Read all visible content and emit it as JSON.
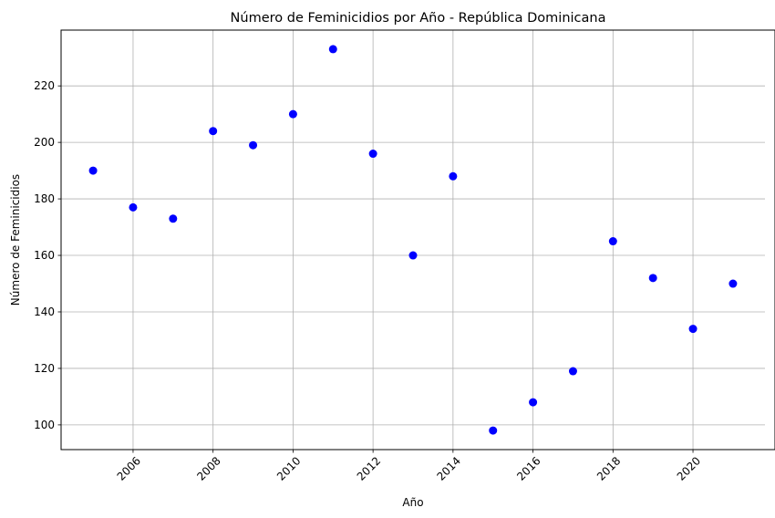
{
  "chart_data": {
    "type": "scatter",
    "title": "Número de Feminicidios por Año - República Dominicana",
    "xlabel": "Año",
    "ylabel": "Número de Feminicidios",
    "x": [
      2005,
      2006,
      2007,
      2008,
      2009,
      2010,
      2011,
      2012,
      2013,
      2014,
      2015,
      2016,
      2017,
      2018,
      2019,
      2020,
      2021
    ],
    "y": [
      190,
      177,
      173,
      204,
      199,
      210,
      233,
      196,
      160,
      188,
      98,
      108,
      119,
      165,
      152,
      134,
      150
    ],
    "xlim": [
      2004.2,
      2021.8
    ],
    "ylim": [
      91.25,
      239.75
    ],
    "xticks": [
      2006,
      2008,
      2010,
      2012,
      2014,
      2016,
      2018,
      2020
    ],
    "yticks": [
      100,
      120,
      140,
      160,
      180,
      200,
      220
    ],
    "xtick_rotation": 45,
    "grid": true,
    "marker_color": "#0000ff",
    "grid_color": "#b0b0b0"
  }
}
